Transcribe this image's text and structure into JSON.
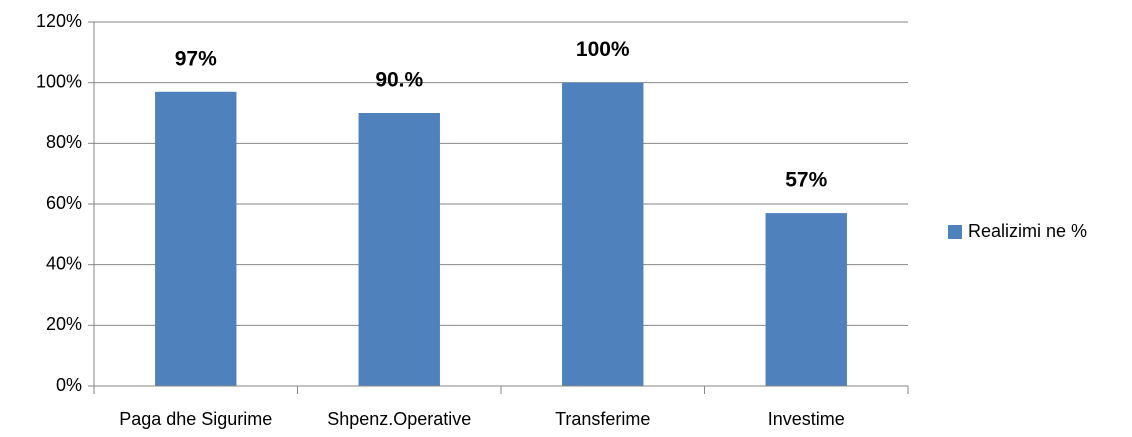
{
  "chart_data": {
    "type": "bar",
    "categories": [
      "Paga dhe Sigurime",
      "Shpenz.Operative",
      "Transferime",
      "Investime"
    ],
    "series": [
      {
        "name": "Realizimi ne %",
        "color": "#4f81bd",
        "values": [
          97,
          90,
          100,
          57
        ],
        "value_labels": [
          "97%",
          "90.%",
          "100%",
          "57%"
        ]
      }
    ],
    "ylim": [
      0,
      120
    ],
    "yticks": [
      {
        "value": 0,
        "label": "0%"
      },
      {
        "value": 20,
        "label": "20%"
      },
      {
        "value": 40,
        "label": "40%"
      },
      {
        "value": 60,
        "label": "60%"
      },
      {
        "value": 80,
        "label": "80%"
      },
      {
        "value": 100,
        "label": "100%"
      },
      {
        "value": 120,
        "label": "120%"
      }
    ],
    "grid": true,
    "legend": "right"
  }
}
